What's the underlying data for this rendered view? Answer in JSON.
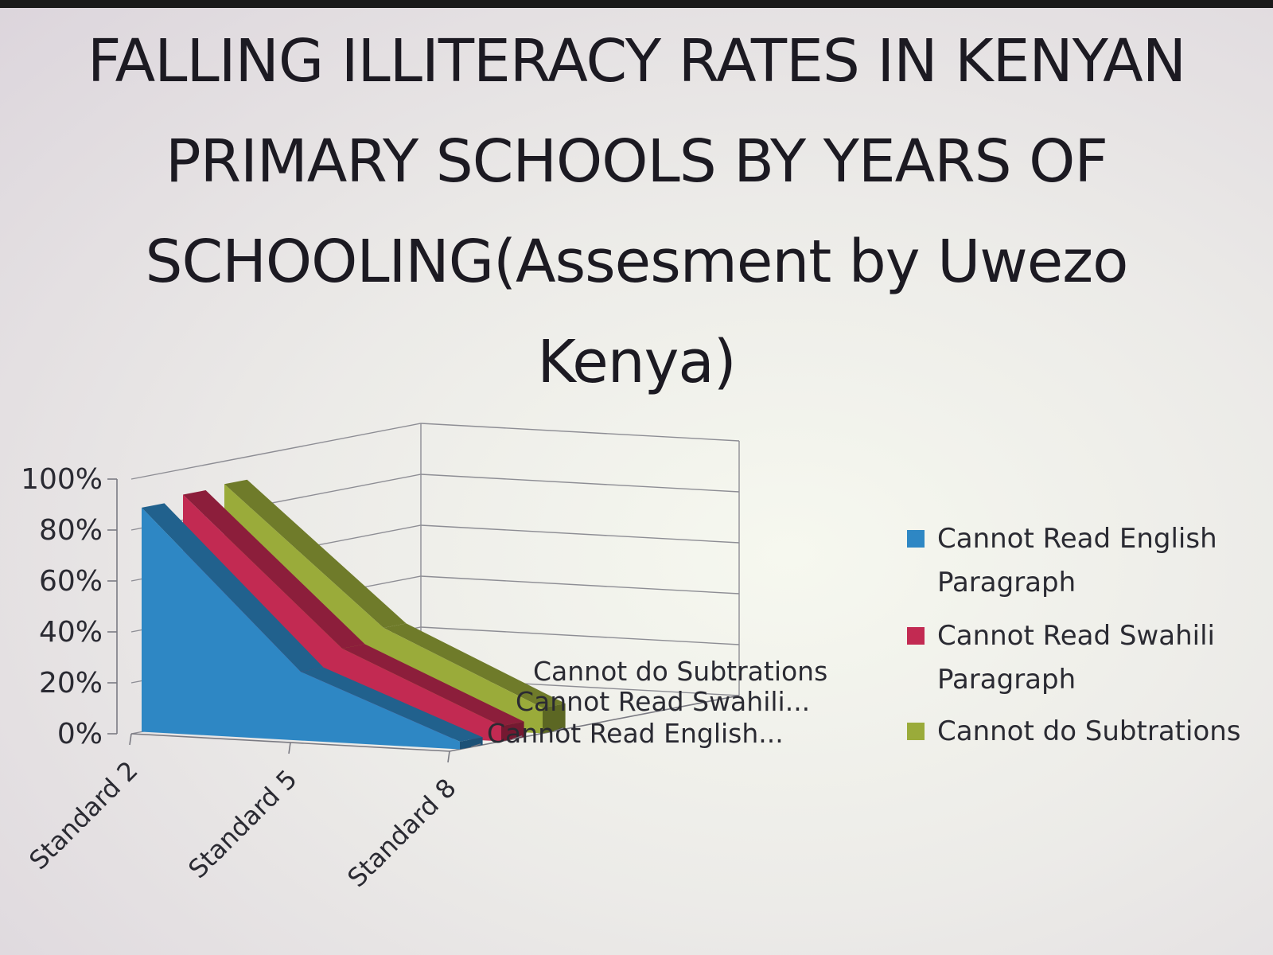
{
  "title_lines": [
    "FALLING ILLITERACY RATES IN KENYAN",
    "PRIMARY SCHOOLS BY YEARS OF",
    "SCHOOLING(Assesment by Uwezo",
    "Kenya)"
  ],
  "chart_data": {
    "type": "area",
    "subtype": "3d-area",
    "title": "FALLING ILLITERACY RATES IN KENYAN PRIMARY SCHOOLS BY YEARS OF SCHOOLING(Assesment by Uwezo Kenya)",
    "categories": [
      "Standard 2",
      "Standard 5",
      "Standard 8"
    ],
    "y_ticks": [
      "0%",
      "20%",
      "40%",
      "60%",
      "80%",
      "100%"
    ],
    "ylim": [
      0,
      100
    ],
    "grid": true,
    "legend_position": "right",
    "series": [
      {
        "name": "Cannot Read English Paragraph",
        "depth_label": "Cannot Read English...",
        "values": [
          88,
          27,
          3
        ],
        "color": "#2e87c4"
      },
      {
        "name": "Cannot Read Swahili Paragraph",
        "depth_label": "Cannot Read Swahili...",
        "values": [
          90,
          33,
          6
        ],
        "color": "#c22a52"
      },
      {
        "name": "Cannot do Subtrations",
        "depth_label": "Cannot do Subtrations",
        "values": [
          91,
          38,
          10
        ],
        "color": "#9aab3a"
      }
    ],
    "legend_lines": [
      [
        "Cannot Read English",
        "Paragraph"
      ],
      [
        "Cannot Read Swahili",
        "Paragraph"
      ],
      [
        "Cannot do Subtrations"
      ]
    ]
  }
}
